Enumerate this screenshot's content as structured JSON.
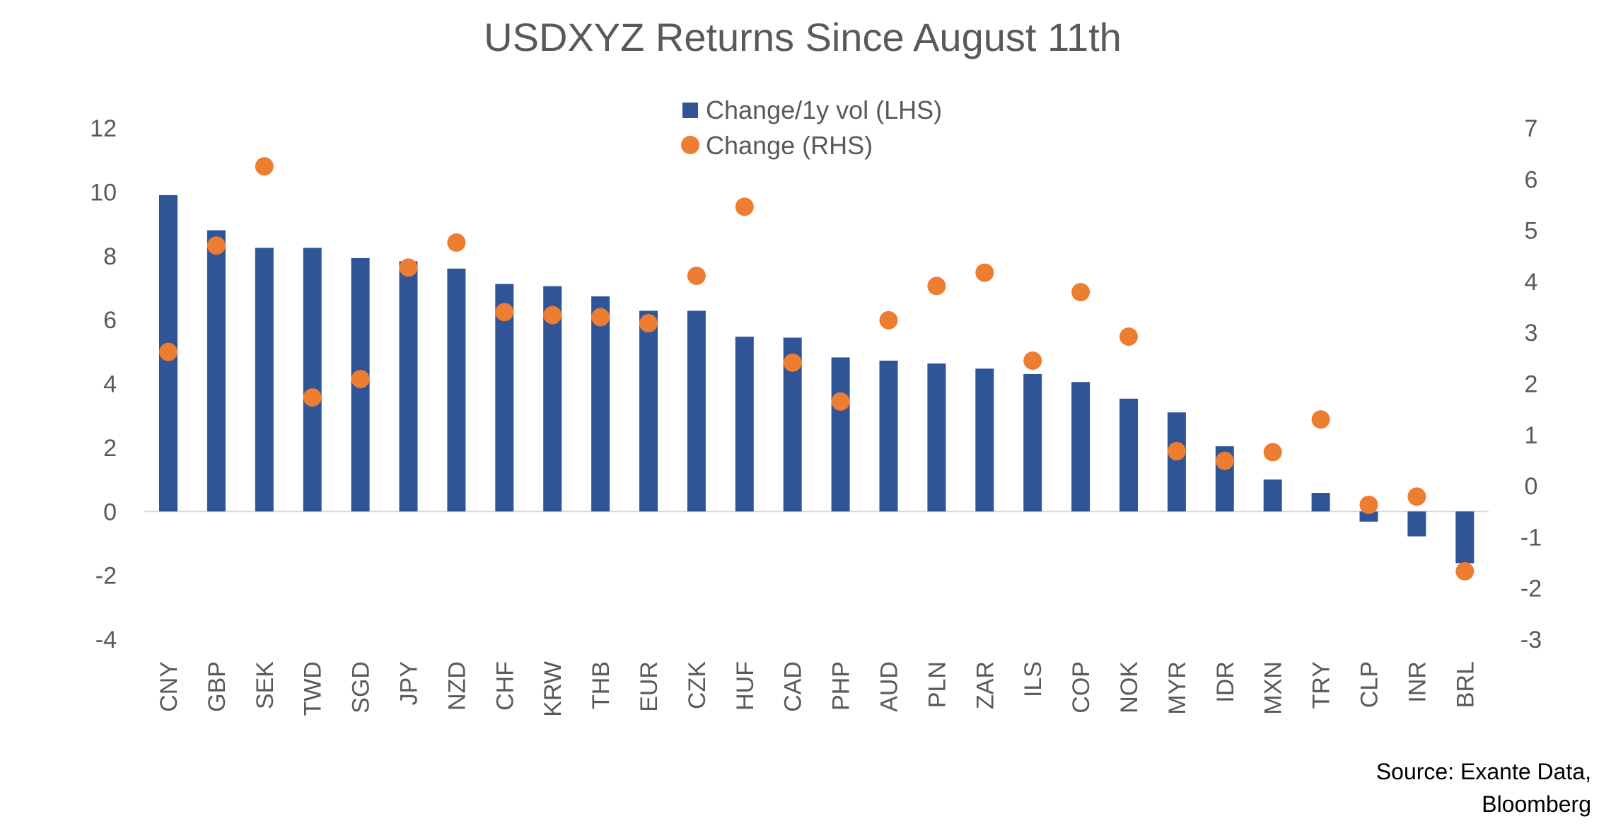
{
  "chart_data": {
    "type": "bar+scatter",
    "title": "USDXYZ Returns Since August 11th",
    "categories": [
      "CNY",
      "GBP",
      "SEK",
      "TWD",
      "SGD",
      "JPY",
      "NZD",
      "CHF",
      "KRW",
      "THB",
      "EUR",
      "CZK",
      "HUF",
      "CAD",
      "PHP",
      "AUD",
      "PLN",
      "ZAR",
      "ILS",
      "COP",
      "NOK",
      "MYR",
      "IDR",
      "MXN",
      "TRY",
      "CLP",
      "INR",
      "BRL"
    ],
    "series": [
      {
        "name": "Change/1y vol (LHS)",
        "type": "bar",
        "axis": "left",
        "color": "#2F5597",
        "values": [
          9.9,
          8.8,
          8.25,
          8.25,
          7.93,
          7.83,
          7.6,
          7.12,
          7.05,
          6.73,
          6.28,
          6.28,
          5.47,
          5.44,
          4.82,
          4.72,
          4.63,
          4.47,
          4.3,
          4.05,
          3.53,
          3.1,
          2.04,
          1.0,
          0.58,
          -0.32,
          -0.78,
          -1.62
        ]
      },
      {
        "name": "Change (RHS)",
        "type": "scatter",
        "axis": "right",
        "color": "#ED7D31",
        "values": [
          2.62,
          4.7,
          6.25,
          1.73,
          2.09,
          4.27,
          4.76,
          3.4,
          3.34,
          3.3,
          3.18,
          4.11,
          5.46,
          2.41,
          1.65,
          3.24,
          3.91,
          4.17,
          2.45,
          3.79,
          2.92,
          0.68,
          0.49,
          0.66,
          1.3,
          -0.37,
          -0.21,
          -1.67
        ]
      }
    ],
    "left_axis": {
      "range": [
        -4,
        12
      ],
      "ticks": [
        "12",
        "10",
        "8",
        "6",
        "4",
        "2",
        "0",
        "-2",
        "-4"
      ]
    },
    "right_axis": {
      "range": [
        -3,
        7
      ],
      "ticks": [
        "7",
        "6",
        "5",
        "4",
        "3",
        "2",
        "1",
        "0",
        "-1",
        "-2",
        "-3"
      ]
    },
    "grid": false,
    "legend_position": "top-center",
    "source": [
      "Source: Exante Data,",
      "Bloomberg"
    ]
  }
}
